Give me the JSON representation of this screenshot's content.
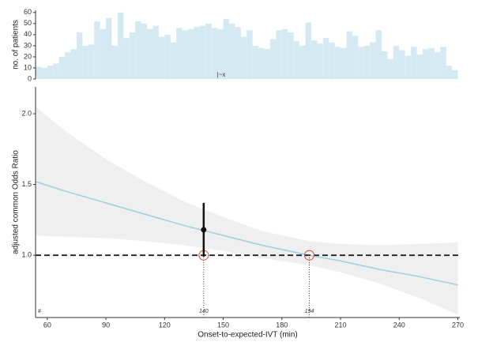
{
  "chart_data": [
    {
      "type": "histogram",
      "ylabel": "no. of patients",
      "annotation": "|~x",
      "color": "#d5e9f2",
      "bins": [
        54,
        57,
        60,
        63,
        66,
        69,
        72,
        75,
        78,
        81,
        84,
        87,
        90,
        93,
        96,
        99,
        102,
        105,
        108,
        111,
        114,
        117,
        120,
        123,
        126,
        129,
        132,
        135,
        138,
        141,
        144,
        147,
        150,
        153,
        156,
        159,
        162,
        165,
        168,
        171,
        174,
        177,
        180,
        183,
        186,
        189,
        192,
        195,
        198,
        201,
        204,
        207,
        210,
        213,
        216,
        219,
        222,
        225,
        228,
        231,
        234,
        237,
        240,
        243,
        246,
        249,
        252,
        255,
        258,
        261,
        264,
        267,
        270
      ],
      "values": [
        11,
        10,
        12,
        14,
        20,
        24,
        27,
        42,
        30,
        31,
        52,
        45,
        55,
        30,
        60,
        37,
        42,
        52,
        50,
        45,
        48,
        38,
        40,
        33,
        46,
        44,
        45,
        47,
        48,
        50,
        46,
        45,
        54,
        50,
        47,
        38,
        44,
        30,
        28,
        27,
        36,
        44,
        45,
        42,
        34,
        30,
        51,
        35,
        32,
        37,
        33,
        29,
        28,
        43,
        39,
        29,
        30,
        33,
        44,
        25,
        18,
        30,
        26,
        21,
        29,
        22,
        27,
        28,
        24,
        29,
        12,
        8
      ],
      "xlim": [
        54,
        271
      ],
      "ylim": [
        0,
        62
      ],
      "yticks": [
        0,
        10,
        20,
        30,
        40,
        50,
        60
      ]
    },
    {
      "type": "line",
      "xlabel": "Onset-to-expected-IVT (min)",
      "ylabel": "adjusted common Odds Ratio",
      "corner_text": "#",
      "x": [
        54,
        70,
        90,
        110,
        130,
        150,
        170,
        194,
        210,
        230,
        250,
        270
      ],
      "series": [
        {
          "name": "estimate",
          "color": "#9ccfe0",
          "values": [
            1.52,
            1.45,
            1.37,
            1.29,
            1.21,
            1.14,
            1.07,
            1.0,
            0.96,
            0.9,
            0.85,
            0.79
          ]
        },
        {
          "name": "upper",
          "color": "#efefef",
          "values": [
            2.05,
            1.87,
            1.68,
            1.52,
            1.38,
            1.27,
            1.17,
            1.1,
            1.08,
            1.07,
            1.08,
            1.09
          ]
        },
        {
          "name": "lower",
          "color": "#efefef",
          "values": [
            1.14,
            1.13,
            1.12,
            1.1,
            1.07,
            1.03,
            0.98,
            0.93,
            0.88,
            0.8,
            0.7,
            0.58
          ]
        }
      ],
      "point": {
        "x": 140,
        "value": 1.18,
        "lower": 0.99,
        "upper": 1.37
      },
      "hline": 1,
      "crossings": [
        140,
        194
      ],
      "xlim": [
        54,
        271
      ],
      "ylim": [
        0.56,
        2.19
      ],
      "xticks": [
        60,
        90,
        120,
        150,
        180,
        210,
        240,
        270
      ],
      "yticks": [
        {
          "value": 1,
          "label": "1.0"
        },
        {
          "value": 1.5,
          "label": "1.5"
        },
        {
          "value": 2,
          "label": "2.0"
        }
      ]
    }
  ]
}
